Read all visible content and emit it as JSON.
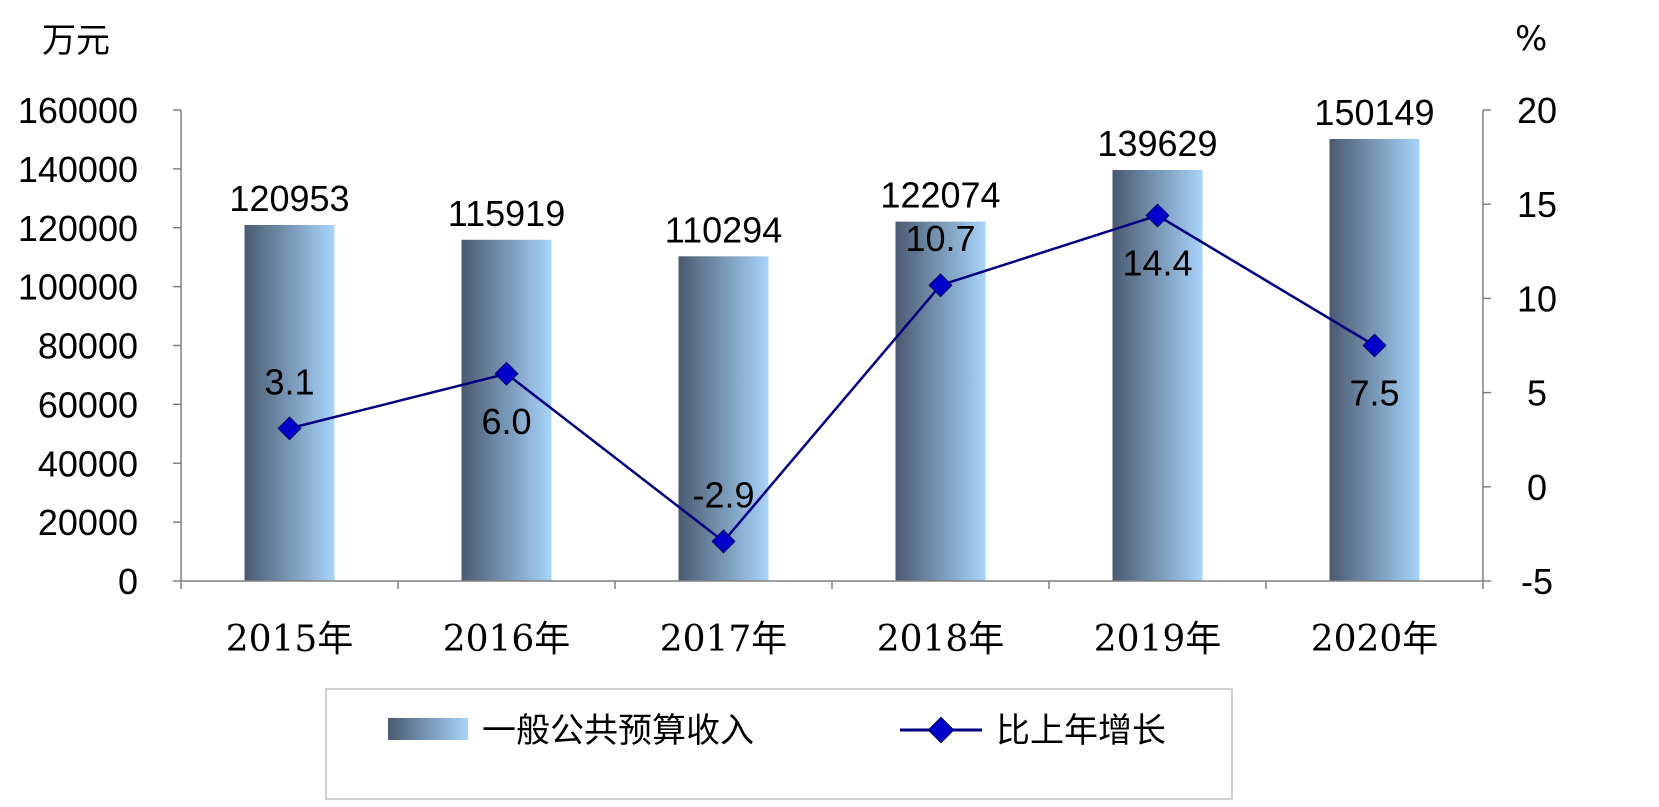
{
  "chart_data": {
    "type": "bar",
    "categories": [
      "2015年",
      "2016年",
      "2017年",
      "2018年",
      "2019年",
      "2020年"
    ],
    "series": [
      {
        "name": "一般公共预算收入",
        "type": "bar",
        "axis": "left",
        "values": [
          120953,
          115919,
          110294,
          122074,
          139629,
          150149
        ],
        "labels": [
          "120953",
          "115919",
          "110294",
          "122074",
          "139629",
          "150149"
        ]
      },
      {
        "name": "比上年增长",
        "type": "line",
        "axis": "right",
        "values": [
          3.1,
          6.0,
          -2.9,
          10.7,
          14.4,
          7.5
        ],
        "labels": [
          "3.1",
          "6.0",
          "-2.9",
          "10.7",
          "14.4",
          "7.5"
        ]
      }
    ],
    "y_left": {
      "unit": "万元",
      "ylim": [
        0,
        160000
      ],
      "ticks": [
        "160000",
        "140000",
        "120000",
        "100000",
        "80000",
        "60000",
        "40000",
        "20000",
        "0"
      ]
    },
    "y_right": {
      "unit": "%",
      "ylim": [
        -5,
        20
      ],
      "ticks": [
        "20",
        "15",
        "10",
        "5",
        "0",
        "-5"
      ]
    },
    "grid": false,
    "legend_position": "bottom",
    "colors": {
      "bar_dark": "#4a5a70",
      "bar_light": "#a8d4fb",
      "line": "#000080",
      "marker": "#0000cc",
      "axis": "#808080"
    }
  }
}
